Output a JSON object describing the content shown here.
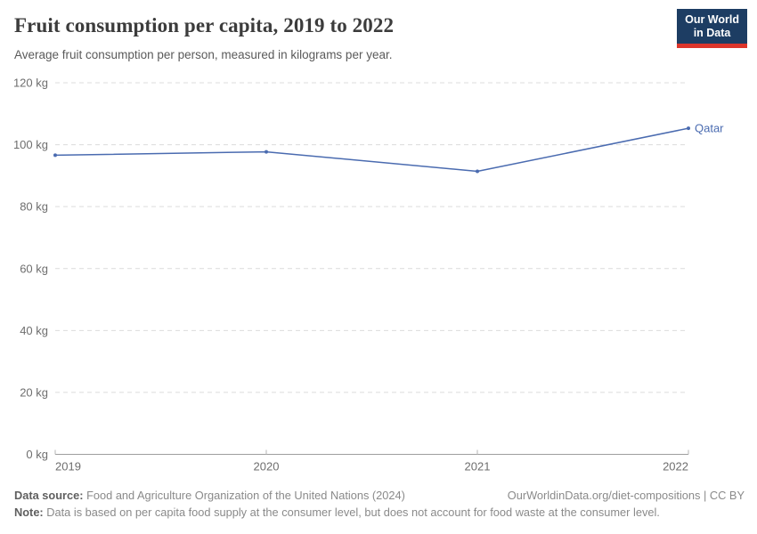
{
  "header": {
    "title": "Fruit consumption per capita, 2019 to 2022",
    "subtitle": "Average fruit consumption per person, measured in kilograms per year.",
    "logo": {
      "line1": "Our World",
      "line2": "in Data",
      "bg_color": "#1d3d63",
      "accent_color": "#dc352b"
    }
  },
  "chart_data": {
    "type": "line",
    "title": "Fruit consumption per capita, 2019 to 2022",
    "xlabel": "",
    "ylabel": "",
    "unit": "kg",
    "x": [
      2019,
      2020,
      2021,
      2022
    ],
    "x_tick_labels": [
      "2019",
      "2020",
      "2021",
      "2022"
    ],
    "series": [
      {
        "name": "Qatar",
        "values": [
          96.6,
          97.7,
          91.4,
          105.3
        ],
        "color": "#4a6bb0"
      }
    ],
    "ylim": [
      0,
      120
    ],
    "y_ticks": [
      0,
      20,
      40,
      60,
      80,
      100,
      120
    ],
    "y_tick_labels": [
      "0 kg",
      "20 kg",
      "40 kg",
      "60 kg",
      "80 kg",
      "100 kg",
      "120 kg"
    ],
    "grid": "horizontal dashed",
    "legend": "end-of-line entity label"
  },
  "footer": {
    "data_source_label": "Data source:",
    "data_source_value": "Food and Agriculture Organization of the United Nations (2024)",
    "attribution": "OurWorldinData.org/diet-compositions | CC BY",
    "note_label": "Note:",
    "note_value": "Data is based on per capita food supply at the consumer level, but does not account for food waste at the consumer level."
  },
  "colors": {
    "line": "#4a6bb0",
    "grid": "#dcdcdc",
    "axis": "#9e9e9e",
    "tick_text": "#6e6e6e",
    "title_text": "#3c3c3c",
    "subtitle_text": "#5a5a5a"
  }
}
